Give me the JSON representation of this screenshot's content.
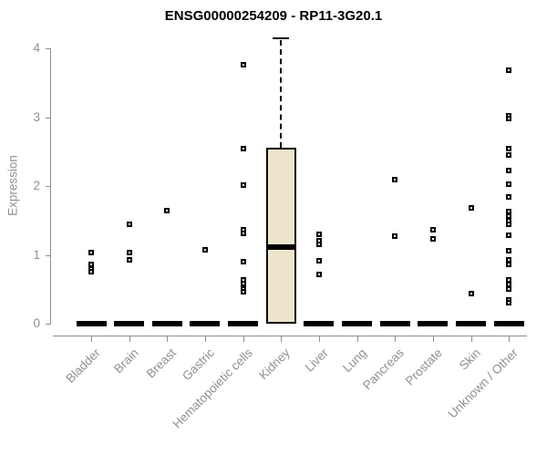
{
  "chart_data": {
    "type": "boxplot",
    "title": "ENSG00000254209 - RP11-3G20.1",
    "xlabel": "",
    "ylabel": "Expression",
    "ylim": [
      0,
      4
    ],
    "yticks": [
      0,
      1,
      2,
      3,
      4
    ],
    "grid": false,
    "legend": "none",
    "categories": [
      "Bladder",
      "Brain",
      "Breast",
      "Gastric",
      "Hematopoietic cells",
      "Kidney",
      "Liver",
      "Lung",
      "Pancreas",
      "Prostate",
      "Skin",
      "Unknown / Other"
    ],
    "boxes": [
      {
        "category": "Bladder",
        "q1": 0,
        "median": 0,
        "q3": 0,
        "whisker_low": 0,
        "whisker_high": 0,
        "outliers": [
          1.03,
          0.86,
          0.8,
          0.75
        ]
      },
      {
        "category": "Brain",
        "q1": 0,
        "median": 0,
        "q3": 0,
        "whisker_low": 0,
        "whisker_high": 0,
        "outliers": [
          1.44,
          1.03,
          0.93
        ]
      },
      {
        "category": "Breast",
        "q1": 0,
        "median": 0,
        "q3": 0,
        "whisker_low": 0,
        "whisker_high": 0,
        "outliers": [
          1.64
        ]
      },
      {
        "category": "Gastric",
        "q1": 0,
        "median": 0,
        "q3": 0,
        "whisker_low": 0,
        "whisker_high": 0,
        "outliers": [
          1.07
        ]
      },
      {
        "category": "Hematopoietic cells",
        "q1": 0,
        "median": 0,
        "q3": 0,
        "whisker_low": 0,
        "whisker_high": 0,
        "outliers": [
          3.77,
          2.55,
          2.01,
          1.37,
          1.31,
          0.9,
          0.64,
          0.58,
          0.51,
          0.46
        ]
      },
      {
        "category": "Kidney",
        "q1": 0,
        "median": 1.12,
        "q3": 2.56,
        "whisker_low": 0,
        "whisker_high": 4.15,
        "outliers": []
      },
      {
        "category": "Liver",
        "q1": 0,
        "median": 0,
        "q3": 0,
        "whisker_low": 0,
        "whisker_high": 0,
        "outliers": [
          1.3,
          1.21,
          1.15,
          0.92,
          0.71
        ]
      },
      {
        "category": "Lung",
        "q1": 0,
        "median": 0,
        "q3": 0,
        "whisker_low": 0,
        "whisker_high": 0,
        "outliers": []
      },
      {
        "category": "Pancreas",
        "q1": 0,
        "median": 0,
        "q3": 0,
        "whisker_low": 0,
        "whisker_high": 0,
        "outliers": [
          2.09,
          1.27
        ]
      },
      {
        "category": "Prostate",
        "q1": 0,
        "median": 0,
        "q3": 0,
        "whisker_low": 0,
        "whisker_high": 0,
        "outliers": [
          1.36,
          1.24
        ]
      },
      {
        "category": "Skin",
        "q1": 0,
        "median": 0,
        "q3": 0,
        "whisker_low": 0,
        "whisker_high": 0,
        "outliers": [
          1.69,
          0.44
        ]
      },
      {
        "category": "Unknown / Other",
        "q1": 0,
        "median": 0,
        "q3": 0,
        "whisker_low": 0,
        "whisker_high": 0,
        "outliers": [
          3.69,
          3.03,
          2.98,
          2.55,
          2.45,
          2.23,
          2.03,
          1.84,
          1.63,
          1.57,
          1.5,
          1.44,
          1.28,
          1.06,
          0.93,
          0.86,
          0.64,
          0.57,
          0.51,
          0.35,
          0.3
        ]
      }
    ],
    "colors": {
      "box_fill": "#ece5cc",
      "box_border": "#000000",
      "median": "#000000",
      "point": "#000000",
      "axis": "#8f8f8f",
      "tick_label": "#909090",
      "title": "#000000",
      "background": "#ffffff"
    }
  }
}
